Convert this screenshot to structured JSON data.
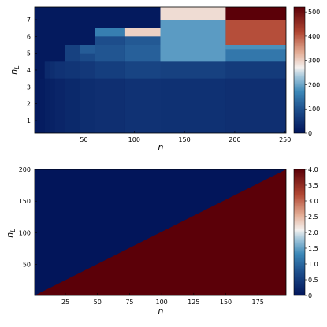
{
  "colors": {
    "dark_blue": "#02155a",
    "blue": "#2f6fa2",
    "light_blue": "#97bfd6",
    "white": "#f6f6f6",
    "light_red": "#e9b89f",
    "red": "#b34a3a",
    "dark_red": "#5b0008"
  },
  "chart_data": [
    {
      "type": "heatmap",
      "xlabel": "n",
      "ylabel": "n_L",
      "x_tick_labels": [
        "50",
        "100",
        "150",
        "200",
        "250"
      ],
      "x_ticks": [
        50,
        100,
        150,
        200,
        250
      ],
      "y_tick_labels": [
        "1",
        "2",
        "3",
        "4",
        "5",
        "6",
        "7"
      ],
      "y_ticks": [
        1,
        2,
        3,
        4,
        5,
        6,
        7
      ],
      "xlim": [
        1,
        251
      ],
      "ylim": [
        0.25,
        7.75
      ],
      "colorbar": {
        "min": 0,
        "max": 520,
        "ticks": [
          0,
          100,
          200,
          300,
          400,
          500
        ],
        "tick_labels": [
          "0",
          "100",
          "200",
          "300",
          "400",
          "500"
        ]
      },
      "cells": [
        {
          "x0": 1,
          "x1": 251,
          "y0": 0.25,
          "y1": 7.75,
          "value": 8
        },
        {
          "x0": 1,
          "x1": 6,
          "y0": 0.25,
          "y1": 3.5,
          "value": 8
        },
        {
          "x0": 6,
          "x1": 11,
          "y0": 0.25,
          "y1": 3.5,
          "value": 12
        },
        {
          "x0": 11,
          "x1": 16,
          "y0": 0.25,
          "y1": 4.5,
          "value": 18
        },
        {
          "x0": 16,
          "x1": 21,
          "y0": 0.25,
          "y1": 4.5,
          "value": 22
        },
        {
          "x0": 21,
          "x1": 31,
          "y0": 0.25,
          "y1": 4.5,
          "value": 28
        },
        {
          "x0": 31,
          "x1": 46,
          "y0": 0.25,
          "y1": 5.5,
          "value": 34
        },
        {
          "x0": 46,
          "x1": 61,
          "y0": 0.25,
          "y1": 5.5,
          "value": 40
        },
        {
          "x0": 61,
          "x1": 91,
          "y0": 0.25,
          "y1": 6.5,
          "value": 45
        },
        {
          "x0": 91,
          "x1": 126,
          "y0": 0.25,
          "y1": 6.5,
          "value": 50
        },
        {
          "x0": 126,
          "x1": 191,
          "y0": 0.25,
          "y1": 4.5,
          "value": 48
        },
        {
          "x0": 191,
          "x1": 251,
          "y0": 0.25,
          "y1": 4.5,
          "value": 45
        },
        {
          "x0": 11,
          "x1": 16,
          "y0": 3.5,
          "y1": 4.5,
          "value": 35
        },
        {
          "x0": 16,
          "x1": 21,
          "y0": 3.5,
          "y1": 4.5,
          "value": 42
        },
        {
          "x0": 21,
          "x1": 31,
          "y0": 3.5,
          "y1": 4.5,
          "value": 50
        },
        {
          "x0": 31,
          "x1": 46,
          "y0": 3.5,
          "y1": 4.5,
          "value": 55
        },
        {
          "x0": 46,
          "x1": 61,
          "y0": 3.5,
          "y1": 4.5,
          "value": 60
        },
        {
          "x0": 61,
          "x1": 91,
          "y0": 3.5,
          "y1": 4.5,
          "value": 70
        },
        {
          "x0": 91,
          "x1": 126,
          "y0": 3.5,
          "y1": 4.5,
          "value": 80
        },
        {
          "x0": 126,
          "x1": 191,
          "y0": 3.5,
          "y1": 4.5,
          "value": 75
        },
        {
          "x0": 191,
          "x1": 251,
          "y0": 3.5,
          "y1": 4.5,
          "value": 65
        },
        {
          "x0": 31,
          "x1": 46,
          "y0": 4.5,
          "y1": 5.5,
          "value": 75
        },
        {
          "x0": 46,
          "x1": 61,
          "y0": 4.5,
          "y1": 5.5,
          "value": 90
        },
        {
          "x0": 61,
          "x1": 91,
          "y0": 4.5,
          "y1": 5.5,
          "value": 105
        },
        {
          "x0": 91,
          "x1": 126,
          "y0": 4.5,
          "y1": 5.5,
          "value": 120
        },
        {
          "x0": 126,
          "x1": 191,
          "y0": 4.5,
          "y1": 5.5,
          "value": 100
        },
        {
          "x0": 191,
          "x1": 251,
          "y0": 4.5,
          "y1": 5.5,
          "value": 150
        },
        {
          "x0": 191,
          "x1": 251,
          "y0": 5.25,
          "y1": 5.5,
          "value": 180
        },
        {
          "x0": 46,
          "x1": 61,
          "y0": 5.0,
          "y1": 5.5,
          "value": 115
        },
        {
          "x0": 61,
          "x1": 91,
          "y0": 5.5,
          "y1": 6.5,
          "value": 95
        },
        {
          "x0": 61,
          "x1": 91,
          "y0": 6.0,
          "y1": 6.5,
          "value": 160
        },
        {
          "x0": 91,
          "x1": 126,
          "y0": 5.5,
          "y1": 6.5,
          "value": 110
        },
        {
          "x0": 91,
          "x1": 126,
          "y0": 6.0,
          "y1": 6.5,
          "value": 300
        },
        {
          "x0": 126,
          "x1": 191,
          "y0": 4.5,
          "y1": 7.0,
          "value": 190
        },
        {
          "x0": 191,
          "x1": 251,
          "y0": 5.5,
          "y1": 7.0,
          "value": 410
        },
        {
          "x0": 126,
          "x1": 191,
          "y0": 7.0,
          "y1": 7.75,
          "value": 290
        },
        {
          "x0": 191,
          "x1": 251,
          "y0": 7.0,
          "y1": 7.75,
          "value": 520
        }
      ]
    },
    {
      "type": "heatmap",
      "xlabel": "n",
      "ylabel": "n_L",
      "x_tick_labels": [
        "25",
        "50",
        "75",
        "100",
        "125",
        "150",
        "175"
      ],
      "x_ticks": [
        25,
        50,
        75,
        100,
        125,
        150,
        175
      ],
      "y_tick_labels": [
        "50",
        "100",
        "150",
        "200"
      ],
      "y_ticks": [
        50,
        100,
        150,
        200
      ],
      "xlim": [
        1,
        197
      ],
      "ylim": [
        1,
        200
      ],
      "description_regions": [
        {
          "region": "n_L > n",
          "value": 0
        },
        {
          "region": "n_L < n",
          "value": 4
        }
      ],
      "colorbar": {
        "min": 0,
        "max": 4,
        "ticks": [
          0,
          0.5,
          1,
          1.5,
          2,
          2.5,
          3,
          3.5,
          4
        ],
        "tick_labels": [
          "0",
          "0.5",
          "1.0",
          "1.5",
          "2.0",
          "2.5",
          "3.0",
          "3.5",
          "4.0"
        ]
      }
    }
  ]
}
